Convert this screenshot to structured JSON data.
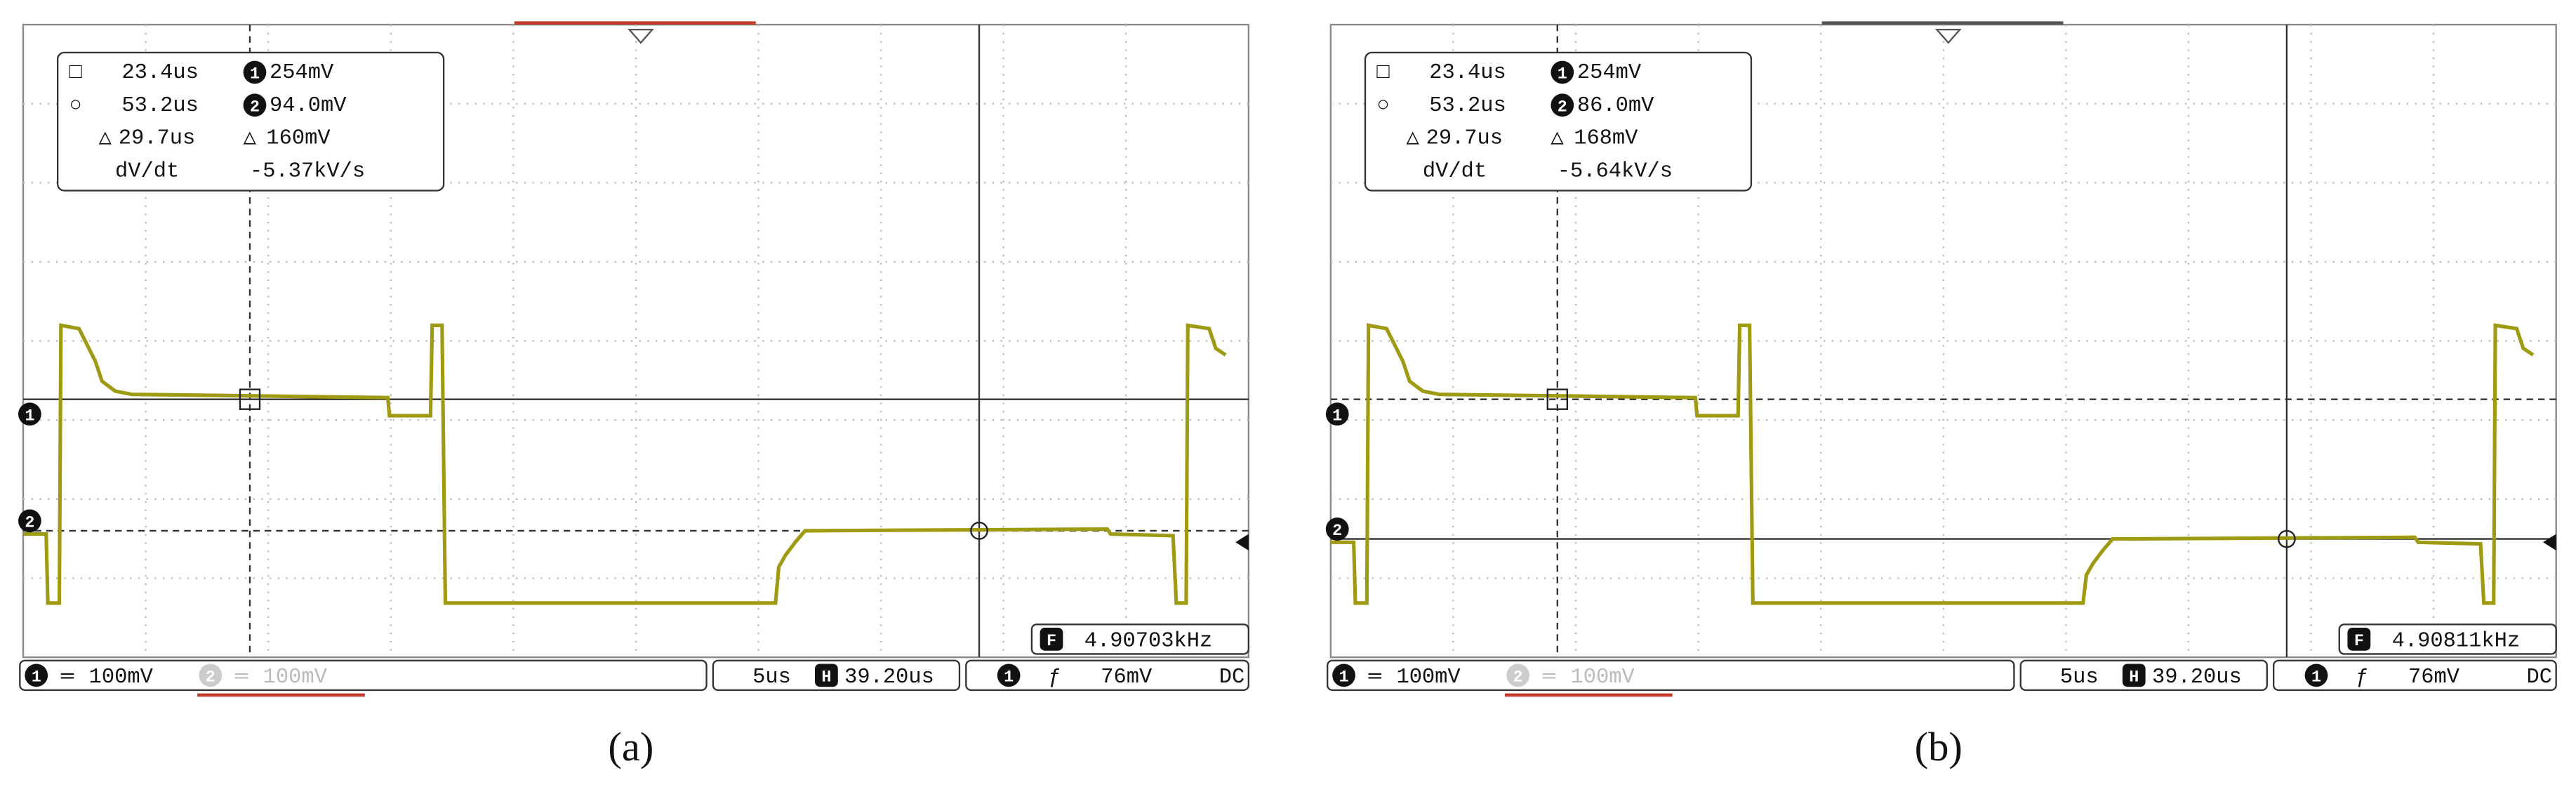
{
  "icons": {
    "ch1": "1",
    "ch2": "2",
    "h": "H",
    "f": "F",
    "coupling": "═",
    "trigger_slope": "ƒ",
    "cursor1": "□",
    "cursor2": "○",
    "delta": "△",
    "dvdt": "dV/dt"
  },
  "panels": [
    {
      "caption": "(a)",
      "readout": {
        "cursor1_time": "23.4us",
        "cursor1_volt": "254mV",
        "cursor2_time": "53.2us",
        "cursor2_volt": "94.0mV",
        "delta_time": "29.7us",
        "delta_volt": "160mV",
        "dvdt": "-5.37kV/s"
      },
      "ch1_scale": "100mV",
      "ch2_scale": "100mV",
      "timebase": "5us",
      "h_position": "39.20us",
      "trigger_level": "76mV",
      "trigger_coupling": "DC",
      "frequency": "4.90703kHz"
    },
    {
      "caption": "(b)",
      "readout": {
        "cursor1_time": "23.4us",
        "cursor1_volt": "254mV",
        "cursor2_time": "53.2us",
        "cursor2_volt": "86.0mV",
        "delta_time": "29.7us",
        "delta_volt": "168mV",
        "dvdt": "-5.64kV/s"
      },
      "ch1_scale": "100mV",
      "ch2_scale": "100mV",
      "timebase": "5us",
      "h_position": "39.20us",
      "trigger_level": "76mV",
      "trigger_coupling": "DC",
      "frequency": "4.90811kHz"
    }
  ]
}
